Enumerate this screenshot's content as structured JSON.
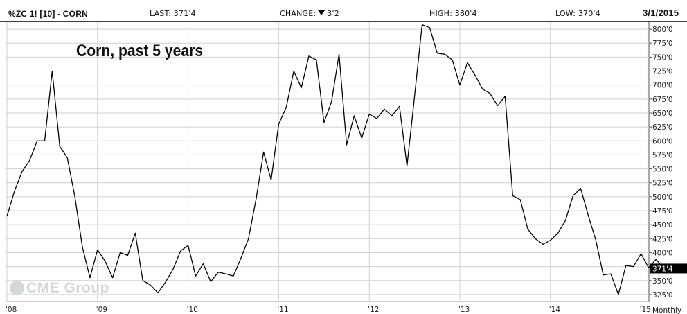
{
  "header": {
    "symbol": "%ZC 1! [10] - CORN",
    "last": "LAST: 371'4",
    "change_label": "CHANGE:",
    "change_value": "3'2",
    "high": "HIGH: 380'4",
    "low": "LOW: 370'4",
    "date": "3/1/2015"
  },
  "watermark": "CME Group",
  "colors": {
    "line": "#000000",
    "grid": "#d0d0d0",
    "last_badge": "#000000"
  },
  "chart_data": {
    "type": "line",
    "title": "Corn, past 5 years",
    "period_label": "Monthly",
    "last_price_label": "371'4",
    "last_price": 371.5,
    "ylim": [
      312.5,
      812.5
    ],
    "y_ticks": [
      {
        "value": 325,
        "label": "325'0"
      },
      {
        "value": 350,
        "label": "350'0"
      },
      {
        "value": 375,
        "label": "375'0"
      },
      {
        "value": 400,
        "label": "400'0"
      },
      {
        "value": 425,
        "label": "425'0"
      },
      {
        "value": 450,
        "label": "450'0"
      },
      {
        "value": 475,
        "label": "475'0"
      },
      {
        "value": 500,
        "label": "500'0"
      },
      {
        "value": 525,
        "label": "525'0"
      },
      {
        "value": 550,
        "label": "550'0"
      },
      {
        "value": 575,
        "label": "575'0"
      },
      {
        "value": 600,
        "label": "600'0"
      },
      {
        "value": 625,
        "label": "625'0"
      },
      {
        "value": 650,
        "label": "650'0"
      },
      {
        "value": 675,
        "label": "675'0"
      },
      {
        "value": 700,
        "label": "700'0"
      },
      {
        "value": 725,
        "label": "725'0"
      },
      {
        "value": 750,
        "label": "750'0"
      },
      {
        "value": 775,
        "label": "775'0"
      },
      {
        "value": 800,
        "label": "800'0"
      }
    ],
    "x_ticks": [
      {
        "index": 0,
        "label": "'08"
      },
      {
        "index": 12,
        "label": "'09"
      },
      {
        "index": 24,
        "label": "'10"
      },
      {
        "index": 36,
        "label": "'11"
      },
      {
        "index": 48,
        "label": "'12"
      },
      {
        "index": 60,
        "label": "'13"
      },
      {
        "index": 72,
        "label": "'14"
      },
      {
        "index": 84,
        "label": "'15"
      }
    ],
    "series": [
      {
        "values": [
          465,
          510,
          545,
          565,
          600,
          600,
          725,
          590,
          570,
          500,
          410,
          355,
          405,
          385,
          355,
          400,
          395,
          435,
          350,
          342,
          328,
          347,
          370,
          403,
          413,
          358,
          380,
          348,
          365,
          362,
          358,
          390,
          425,
          495,
          580,
          530,
          630,
          660,
          725,
          695,
          752,
          745,
          633,
          670,
          755,
          593,
          645,
          605,
          648,
          640,
          657,
          645,
          662,
          555,
          680,
          808,
          803,
          757,
          755,
          745,
          700,
          740,
          718,
          693,
          685,
          663,
          680,
          502,
          495,
          442,
          425,
          415,
          422,
          435,
          458,
          502,
          515,
          467,
          423,
          360,
          362,
          325,
          377,
          375,
          398,
          373,
          388,
          371.5
        ]
      }
    ]
  }
}
